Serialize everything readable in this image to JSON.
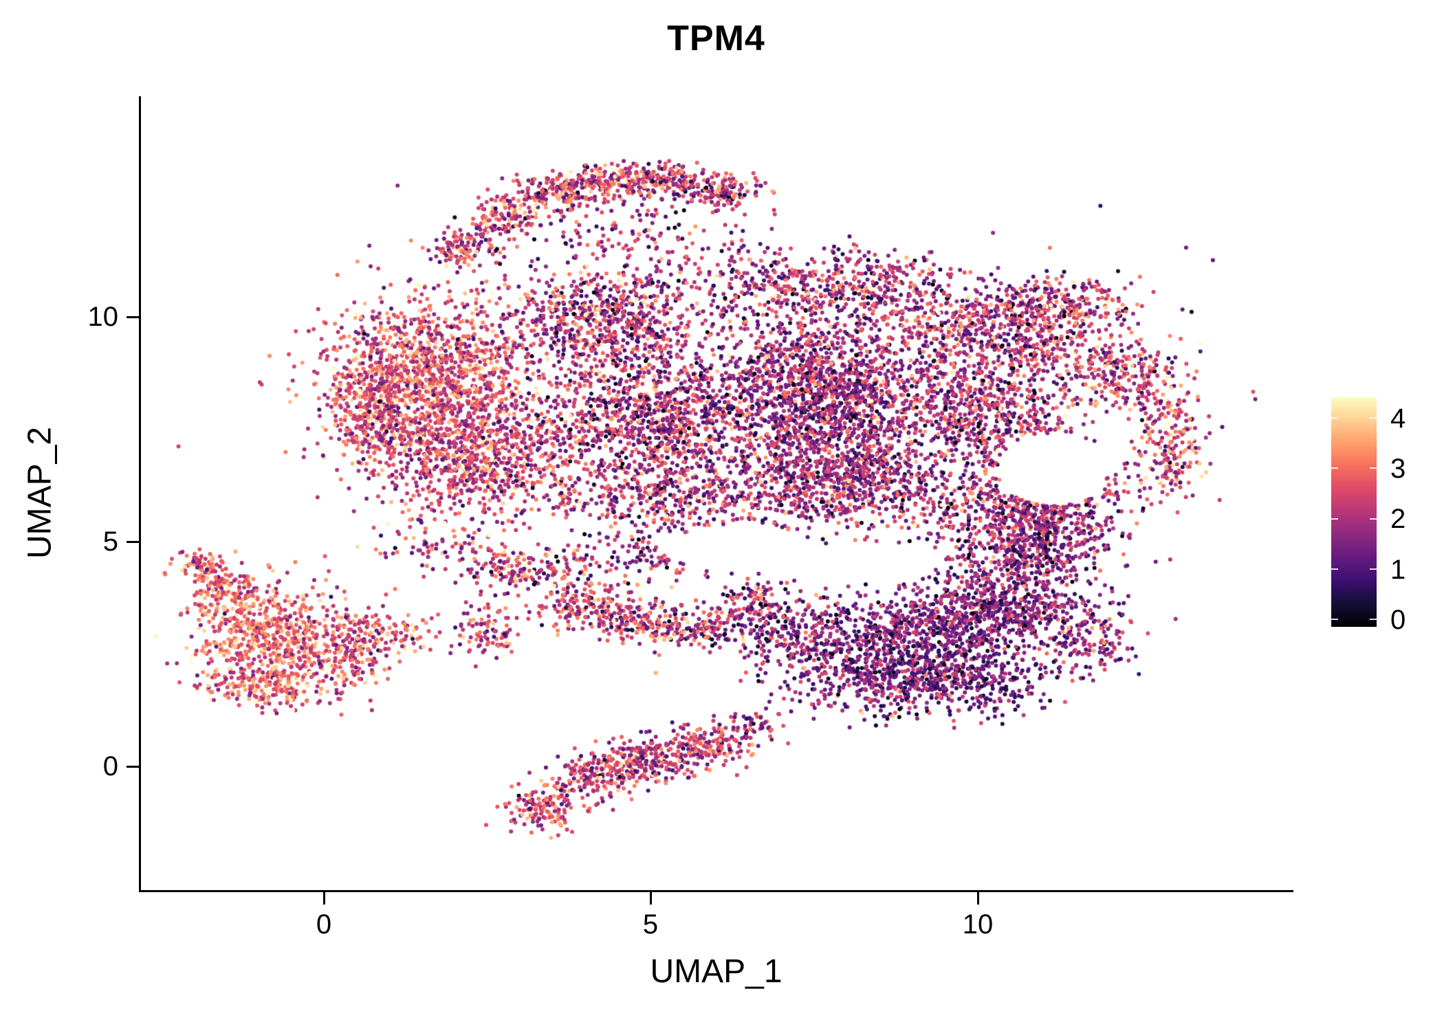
{
  "page": {
    "background": "#ffffff",
    "axis_color": "#000000",
    "text_color": "#000000"
  },
  "chart_data": {
    "type": "scatter",
    "title": "TPM4",
    "subtitle": "",
    "xlabel": "UMAP_1",
    "ylabel": "UMAP_2",
    "xlim": [
      -2.8,
      14.8
    ],
    "ylim": [
      -2.75,
      14.9
    ],
    "xticks": [
      "0",
      "5",
      "10"
    ],
    "yticks": [
      "10",
      "5",
      "0"
    ],
    "grid": false,
    "legend_position": "right",
    "point_color_encoding": "TPM4 expression level per cell",
    "point_radius_px": 3,
    "seed": 42,
    "colorbar": {
      "position": "right",
      "min": 0,
      "max": 4.4,
      "ticks": [
        "4",
        "3",
        "2",
        "1",
        "0"
      ],
      "palette_name": "magma",
      "stops": [
        "#000004",
        "#140e36",
        "#3b0f70",
        "#641a80",
        "#8c2981",
        "#b73779",
        "#de4968",
        "#f7705c",
        "#fe9f6d",
        "#fecf92",
        "#fcfdbf"
      ]
    },
    "cluster_fields": [
      "center_x",
      "center_y",
      "spread_x",
      "spread_y",
      "n_points",
      "expr_mean",
      "expr_sd"
    ],
    "clusters": [
      [
        2.15,
        11.55,
        0.5,
        0.5,
        120,
        2.4,
        0.9
      ],
      [
        2.75,
        12.2,
        0.5,
        0.45,
        130,
        2.5,
        0.9
      ],
      [
        3.5,
        12.75,
        0.65,
        0.4,
        160,
        2.5,
        0.9
      ],
      [
        4.4,
        13.05,
        0.75,
        0.35,
        180,
        2.5,
        0.9
      ],
      [
        5.3,
        13.05,
        0.65,
        0.35,
        160,
        2.4,
        0.9
      ],
      [
        6.1,
        12.75,
        0.55,
        0.35,
        130,
        2.3,
        0.9
      ],
      [
        4.6,
        12.0,
        1.8,
        0.8,
        140,
        2.1,
        0.9
      ],
      [
        1.6,
        8.7,
        1.6,
        1.7,
        1200,
        2.7,
        0.75
      ],
      [
        2.3,
        6.9,
        1.6,
        1.3,
        800,
        2.4,
        0.8
      ],
      [
        0.75,
        7.9,
        0.7,
        1.3,
        260,
        2.6,
        0.8
      ],
      [
        4.3,
        9.9,
        1.6,
        1.2,
        700,
        2.1,
        0.9
      ],
      [
        4.9,
        7.7,
        1.7,
        1.5,
        900,
        2.1,
        0.9
      ],
      [
        5.3,
        5.9,
        1.9,
        1.0,
        450,
        2.0,
        0.9
      ],
      [
        7.6,
        8.4,
        1.8,
        1.6,
        1500,
        1.85,
        0.8
      ],
      [
        7.9,
        6.4,
        1.7,
        1.2,
        800,
        1.9,
        0.8
      ],
      [
        7.6,
        10.7,
        2.3,
        0.9,
        550,
        2.0,
        0.9
      ],
      [
        10.3,
        9.7,
        1.7,
        1.1,
        650,
        2.1,
        0.9
      ],
      [
        10.2,
        7.8,
        1.4,
        1.3,
        650,
        2.0,
        0.9
      ],
      [
        10.6,
        5.6,
        1.5,
        1.1,
        550,
        1.9,
        0.8
      ],
      [
        12.2,
        8.8,
        0.9,
        0.9,
        240,
        2.4,
        0.9
      ],
      [
        12.9,
        7.2,
        0.55,
        1.3,
        220,
        2.5,
        0.9
      ],
      [
        11.5,
        10.3,
        0.9,
        0.55,
        170,
        2.2,
        0.9
      ],
      [
        6.5,
        8.2,
        5.8,
        3.4,
        450,
        2.0,
        1.0
      ],
      [
        9.2,
        2.9,
        1.7,
        1.2,
        800,
        1.5,
        0.7
      ],
      [
        10.4,
        3.6,
        1.3,
        1.0,
        450,
        1.6,
        0.7
      ],
      [
        8.3,
        2.0,
        1.3,
        0.9,
        350,
        1.6,
        0.7
      ],
      [
        9.9,
        1.8,
        1.1,
        0.7,
        260,
        1.5,
        0.7
      ],
      [
        10.9,
        4.8,
        1.0,
        0.9,
        280,
        1.8,
        0.8
      ],
      [
        7.3,
        2.9,
        0.9,
        0.9,
        220,
        1.7,
        0.8
      ],
      [
        11.6,
        2.9,
        0.8,
        0.9,
        180,
        1.7,
        0.8
      ],
      [
        11.3,
        5.9,
        0.8,
        1.0,
        200,
        1.9,
        0.8
      ],
      [
        3.0,
        4.4,
        1.0,
        0.55,
        160,
        2.2,
        0.9
      ],
      [
        4.0,
        3.6,
        0.75,
        0.6,
        180,
        2.4,
        0.9
      ],
      [
        4.85,
        3.2,
        0.6,
        0.45,
        140,
        2.4,
        0.9
      ],
      [
        5.8,
        3.1,
        0.85,
        0.5,
        160,
        2.2,
        0.9
      ],
      [
        6.6,
        3.6,
        0.55,
        0.65,
        110,
        2.0,
        0.9
      ],
      [
        5.5,
        4.6,
        1.9,
        0.45,
        140,
        2.0,
        0.9
      ],
      [
        2.45,
        3.0,
        0.45,
        0.75,
        90,
        2.3,
        0.9
      ],
      [
        1.6,
        4.9,
        0.8,
        0.5,
        60,
        2.3,
        0.9
      ],
      [
        -0.8,
        2.9,
        1.2,
        1.1,
        650,
        3.0,
        0.7
      ],
      [
        -1.5,
        3.9,
        0.55,
        0.5,
        130,
        2.9,
        0.7
      ],
      [
        -1.9,
        4.45,
        0.4,
        0.35,
        70,
        2.9,
        0.7
      ],
      [
        -0.9,
        1.75,
        1.0,
        0.45,
        180,
        2.8,
        0.7
      ],
      [
        0.45,
        2.6,
        0.55,
        0.9,
        180,
        2.7,
        0.8
      ],
      [
        1.25,
        2.95,
        0.55,
        0.45,
        60,
        2.5,
        0.8
      ],
      [
        3.35,
        -0.95,
        0.55,
        0.55,
        140,
        2.6,
        0.8
      ],
      [
        4.2,
        -0.2,
        0.75,
        0.55,
        180,
        2.4,
        0.8
      ],
      [
        5.0,
        0.2,
        0.85,
        0.55,
        220,
        2.3,
        0.8
      ],
      [
        5.9,
        0.5,
        0.65,
        0.45,
        140,
        2.4,
        0.8
      ],
      [
        6.6,
        0.9,
        0.45,
        0.35,
        50,
        2.1,
        0.8
      ]
    ],
    "hole_fields": [
      "center_x",
      "center_y",
      "radius_x",
      "radius_y"
    ],
    "holes": [
      [
        11.15,
        6.6,
        0.85,
        0.8
      ],
      [
        6.3,
        4.85,
        1.1,
        0.5
      ],
      [
        8.0,
        4.5,
        1.3,
        0.45
      ]
    ]
  }
}
